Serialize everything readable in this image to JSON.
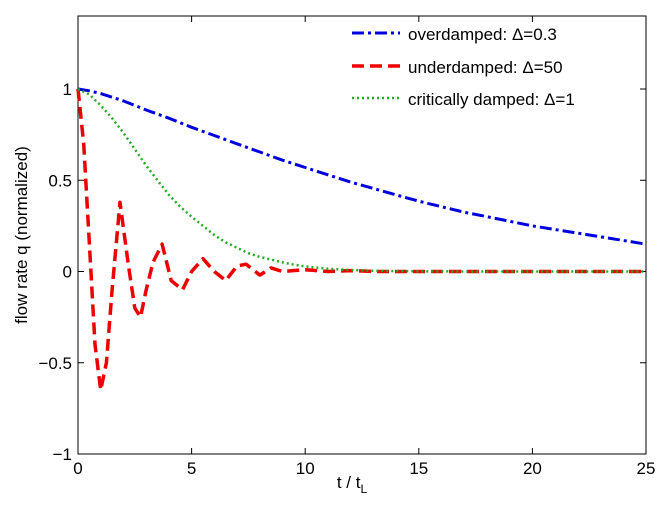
{
  "chart_data": {
    "type": "line",
    "xlabel": "t / t",
    "xlabel_sub": "L",
    "ylabel": "flow rate q (normalized)",
    "xlim": [
      0,
      25
    ],
    "ylim": [
      -1,
      1.4
    ],
    "xticks": [
      0,
      5,
      10,
      15,
      20,
      25
    ],
    "yticks": [
      -1,
      -0.5,
      0,
      0.5,
      1
    ],
    "xtick_labels": [
      "0",
      "5",
      "10",
      "15",
      "20",
      "25"
    ],
    "ytick_labels": [
      "−1",
      "−0.5",
      "0",
      "0.5",
      "1"
    ],
    "grid": false,
    "legend_position": "top-right",
    "series": [
      {
        "name": "overdamped:  Δ=0.3",
        "color": "#0000dd",
        "style": "dash-dot",
        "x": [
          0,
          0.5,
          1,
          1.5,
          2,
          2.5,
          3,
          4,
          5,
          6,
          7,
          8,
          9,
          10,
          11,
          12,
          13,
          14,
          15,
          16,
          17,
          18,
          19,
          20,
          21,
          22,
          23,
          24,
          25
        ],
        "y": [
          1.0,
          0.99,
          0.975,
          0.955,
          0.935,
          0.91,
          0.885,
          0.84,
          0.79,
          0.745,
          0.7,
          0.655,
          0.61,
          0.57,
          0.53,
          0.49,
          0.455,
          0.42,
          0.385,
          0.355,
          0.325,
          0.3,
          0.275,
          0.25,
          0.23,
          0.21,
          0.19,
          0.17,
          0.15
        ]
      },
      {
        "name": "underdamped:  Δ=50",
        "color": "#ee0000",
        "style": "dashed",
        "x": [
          0,
          0.25,
          0.5,
          0.75,
          1.0,
          1.25,
          1.5,
          1.85,
          2.2,
          2.5,
          2.75,
          3.0,
          3.3,
          3.7,
          4.1,
          4.6,
          5.0,
          5.5,
          6.0,
          6.5,
          7.0,
          7.4,
          8.0,
          8.5,
          9.0,
          10.0,
          11.0,
          12.0,
          13.0,
          15.0,
          20.0,
          25.0
        ],
        "y": [
          1.0,
          0.7,
          0.15,
          -0.4,
          -0.65,
          -0.5,
          -0.1,
          0.38,
          0.05,
          -0.2,
          -0.25,
          -0.1,
          0.05,
          0.15,
          -0.05,
          -0.1,
          0.0,
          0.07,
          0.0,
          -0.05,
          0.03,
          0.04,
          -0.02,
          0.02,
          0.0,
          0.01,
          0.0,
          0.005,
          0.0,
          0.0,
          0.0,
          0.0
        ]
      },
      {
        "name": "critically damped:  Δ=1",
        "color": "#22aa22",
        "style": "dotted",
        "x": [
          0,
          0.5,
          1,
          1.5,
          2,
          2.5,
          3,
          3.5,
          4,
          4.5,
          5,
          5.5,
          6,
          6.5,
          7,
          7.5,
          8,
          8.5,
          9,
          9.5,
          10,
          11,
          12,
          13,
          14,
          15,
          17,
          20,
          25
        ],
        "y": [
          1.0,
          0.97,
          0.91,
          0.84,
          0.76,
          0.67,
          0.58,
          0.5,
          0.42,
          0.355,
          0.3,
          0.25,
          0.2,
          0.16,
          0.13,
          0.1,
          0.08,
          0.065,
          0.05,
          0.038,
          0.028,
          0.015,
          0.008,
          0.004,
          0.002,
          0.001,
          0.0,
          0.0,
          0.0
        ]
      }
    ]
  }
}
